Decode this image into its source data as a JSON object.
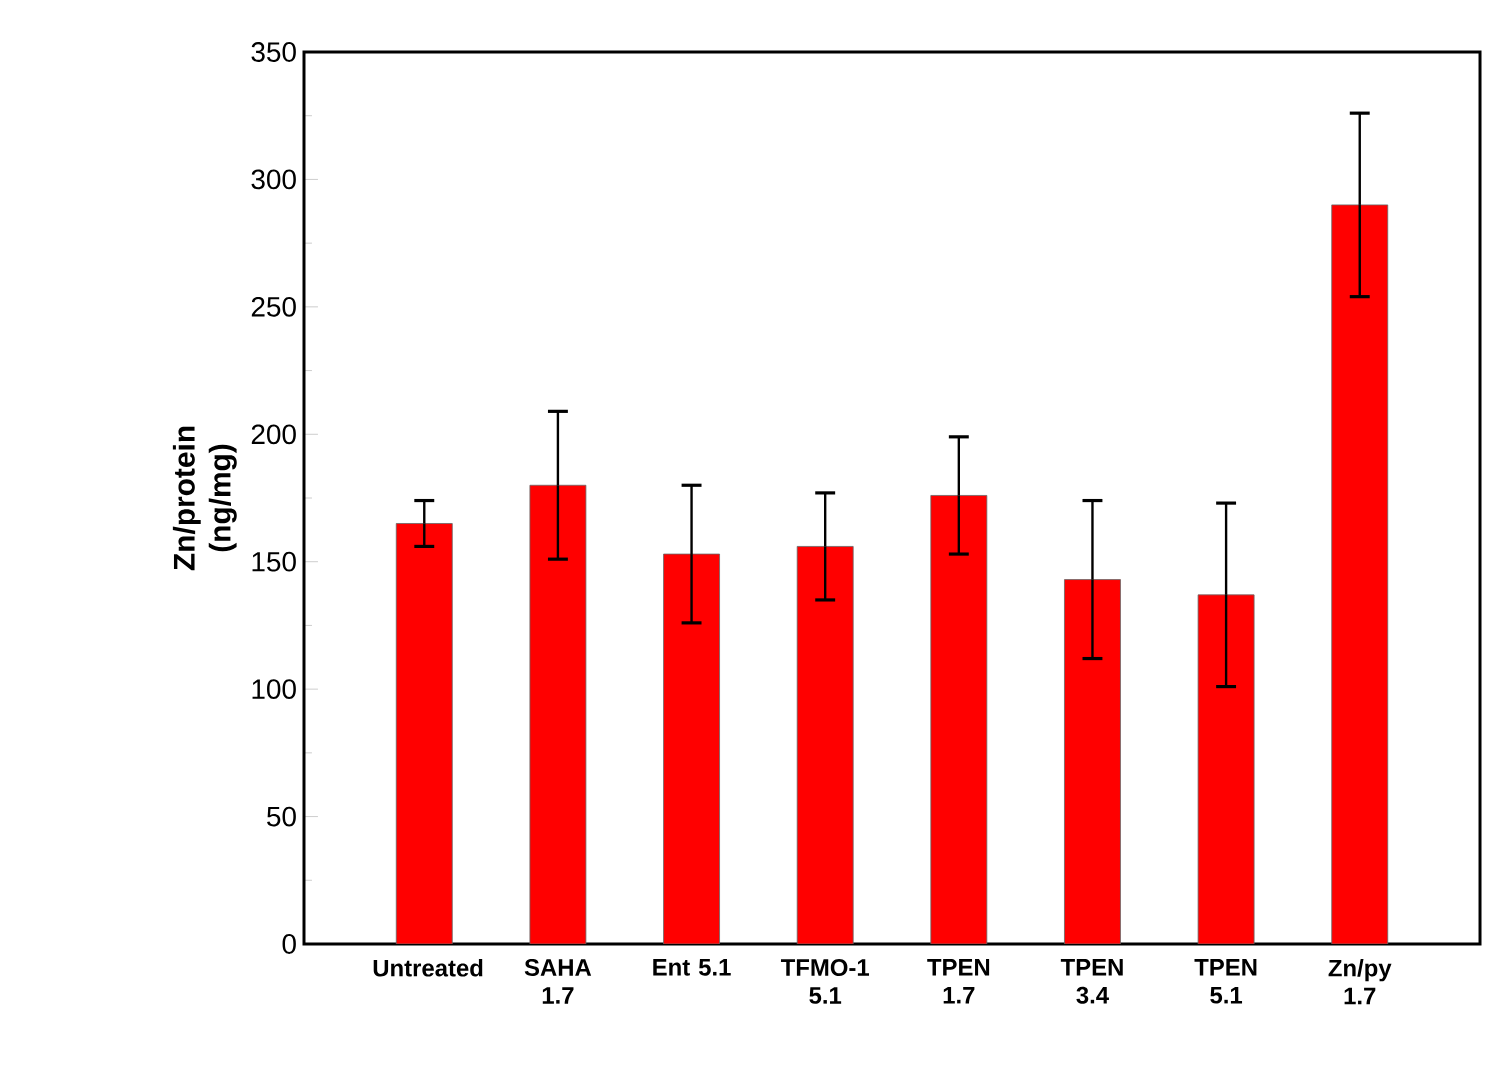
{
  "chart_data": {
    "type": "bar",
    "ylabel": "Zn/protein (ng/mg)",
    "categories": [
      "Untreated",
      "SAHA 1.7",
      "Ent 5.1",
      "TFMO-1 5.1",
      "TPEN 1.7",
      "TPEN 3.4",
      "TPEN 5.1",
      "Zn/py 1.7"
    ],
    "values": [
      165,
      180,
      153,
      156,
      176,
      143,
      137,
      290
    ],
    "errors": [
      9,
      29,
      27,
      21,
      23,
      31,
      36,
      36
    ],
    "color": "#ff0000",
    "ylim": [
      0,
      350
    ],
    "yticks": [
      0,
      50,
      100,
      150,
      200,
      250,
      300,
      350
    ]
  }
}
